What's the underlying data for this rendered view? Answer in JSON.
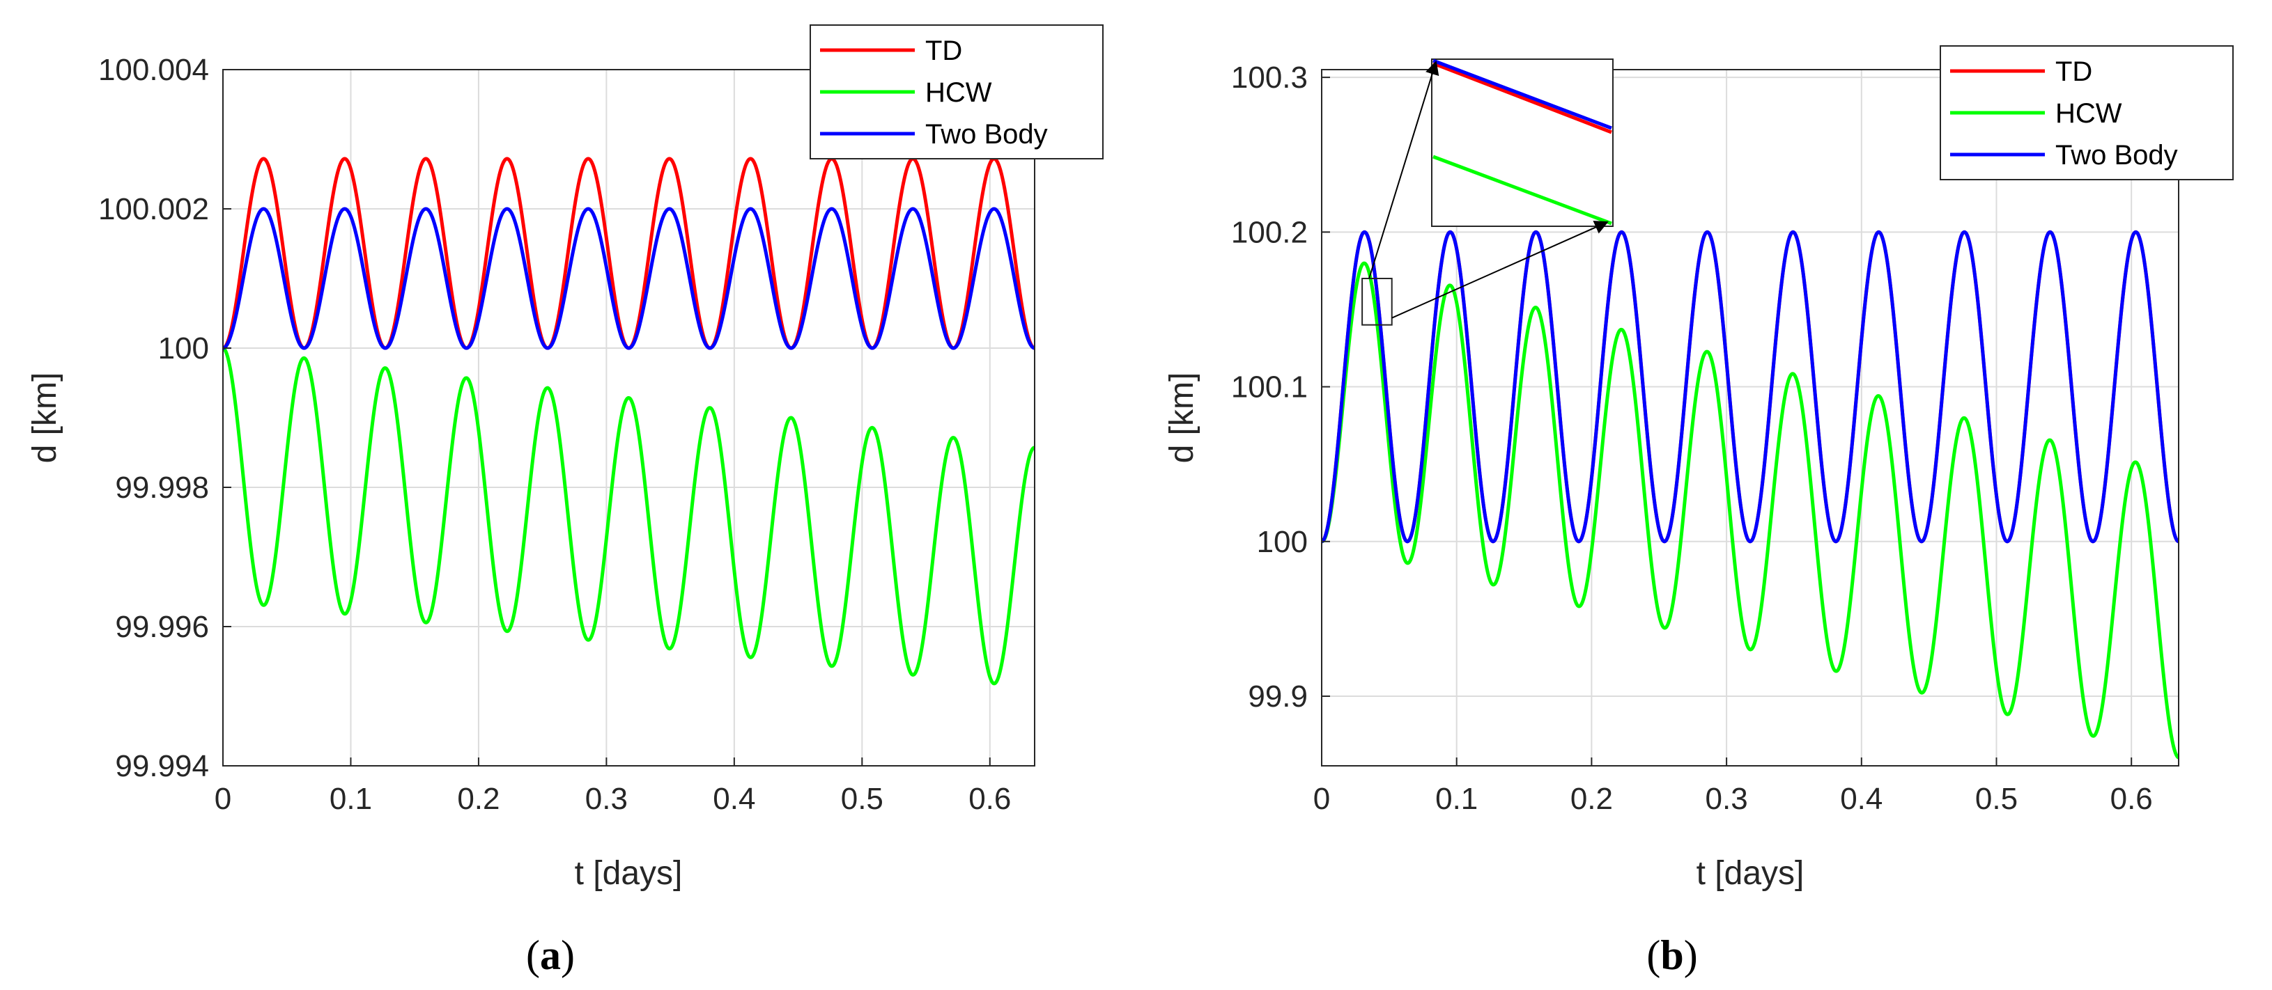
{
  "chart_data": [
    {
      "type": "line",
      "panel_label": "a",
      "xlabel": "t [days]",
      "ylabel": "d [km]",
      "xlim": [
        0,
        0.635
      ],
      "ylim": [
        99.994,
        100.004
      ],
      "xticks": [
        0,
        0.1,
        0.2,
        0.3,
        0.4,
        0.5,
        0.6
      ],
      "xtick_labels": [
        "0",
        "0.1",
        "0.2",
        "0.3",
        "0.4",
        "0.5",
        "0.6"
      ],
      "yticks": [
        99.994,
        99.996,
        99.998,
        100,
        100.002,
        100.004
      ],
      "ytick_labels": [
        "99.994",
        "99.996",
        "99.998",
        "100",
        "100.002",
        "100.004"
      ],
      "grid": true,
      "legend_position": "top-right",
      "period_days": 0.0635,
      "series": [
        {
          "name": "TD",
          "color": "#ff0000",
          "baseline": 100.0,
          "peak": 100.00272,
          "peak_drift_per_day": 0.0,
          "baseline_drift_per_day": 0.0
        },
        {
          "name": "HCW",
          "color": "#00ff00",
          "baseline": 100.0,
          "baseline_drift_per_day": -0.00225,
          "trough": 99.99637,
          "trough_drift_per_day": -0.00197
        },
        {
          "name": "Two Body",
          "color": "#0000ff",
          "baseline": 100.0,
          "peak": 100.002,
          "peak_drift_per_day": 0.0,
          "baseline_drift_per_day": 0.0
        }
      ]
    },
    {
      "type": "line",
      "panel_label": "b",
      "xlabel": "t [days]",
      "ylabel": "d [km]",
      "xlim": [
        0,
        0.635
      ],
      "ylim": [
        99.855,
        100.305
      ],
      "xticks": [
        0,
        0.1,
        0.2,
        0.3,
        0.4,
        0.5,
        0.6
      ],
      "xtick_labels": [
        "0",
        "0.1",
        "0.2",
        "0.3",
        "0.4",
        "0.5",
        "0.6"
      ],
      "yticks": [
        99.9,
        100,
        100.1,
        100.2,
        100.3
      ],
      "ytick_labels": [
        "99.9",
        "100",
        "100.1",
        "100.2",
        "100.3"
      ],
      "grid": true,
      "legend_position": "top-right",
      "period_days": 0.0635,
      "inset": {
        "note": "zoom of region near t≈0.04, d≈100.15",
        "x_range": [
          0.03,
          0.052
        ],
        "y_range": [
          100.14,
          100.17
        ]
      },
      "series": [
        {
          "name": "TD",
          "color": "#ff0000",
          "baseline": 100.0,
          "peak": 100.2,
          "peak_drift_per_day": 0.0,
          "baseline_drift_per_day": 0.0
        },
        {
          "name": "HCW",
          "color": "#00ff00",
          "baseline": 100.0,
          "baseline_drift_per_day": -0.22,
          "peak": 100.187,
          "peak_drift_per_day": -0.225
        },
        {
          "name": "Two Body",
          "color": "#0000ff",
          "baseline": 100.0,
          "peak": 100.2,
          "peak_drift_per_day": 0.0,
          "baseline_drift_per_day": 0.0
        }
      ]
    }
  ]
}
